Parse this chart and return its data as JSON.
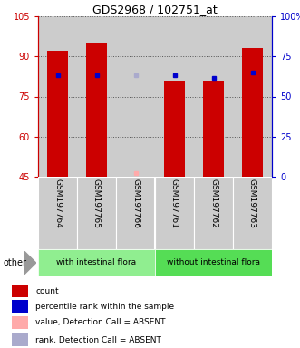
{
  "title": "GDS2968 / 102751_at",
  "samples": [
    "GSM197764",
    "GSM197765",
    "GSM197766",
    "GSM197761",
    "GSM197762",
    "GSM197763"
  ],
  "groups": [
    "with intestinal flora",
    "without intestinal flora"
  ],
  "group_colors": [
    "#90ee90",
    "#55dd55"
  ],
  "ylim_left": [
    45,
    105
  ],
  "ylim_right": [
    0,
    100
  ],
  "yticks_left": [
    45,
    60,
    75,
    90,
    105
  ],
  "yticks_right": [
    0,
    25,
    50,
    75,
    100
  ],
  "yticklabels_left": [
    "45",
    "60",
    "75",
    "90",
    "105"
  ],
  "yticklabels_right": [
    "0",
    "25",
    "50",
    "75",
    "100%"
  ],
  "bar_bottoms": [
    45,
    45,
    45,
    45,
    45,
    45
  ],
  "bar_tops": [
    92,
    95,
    45,
    81,
    81,
    93
  ],
  "bar_color": "#cc0000",
  "bar_width": 0.55,
  "blue_marker_values": [
    83,
    83,
    null,
    83,
    82,
    84
  ],
  "blue_marker_color": "#0000cc",
  "absent_value_markers": [
    null,
    null,
    46.5,
    null,
    null,
    null
  ],
  "absent_rank_markers": [
    null,
    null,
    83,
    null,
    null,
    null
  ],
  "absent_value_color": "#ffaaaa",
  "absent_rank_color": "#aaaacc",
  "grid_color": "#555555",
  "bg_color": "#ffffff",
  "left_axis_color": "#cc0000",
  "right_axis_color": "#0000cc",
  "column_bg_color": "#cccccc",
  "legend_items": [
    {
      "label": "count",
      "color": "#cc0000"
    },
    {
      "label": "percentile rank within the sample",
      "color": "#0000cc"
    },
    {
      "label": "value, Detection Call = ABSENT",
      "color": "#ffaaaa"
    },
    {
      "label": "rank, Detection Call = ABSENT",
      "color": "#aaaacc"
    }
  ],
  "other_label": "other"
}
